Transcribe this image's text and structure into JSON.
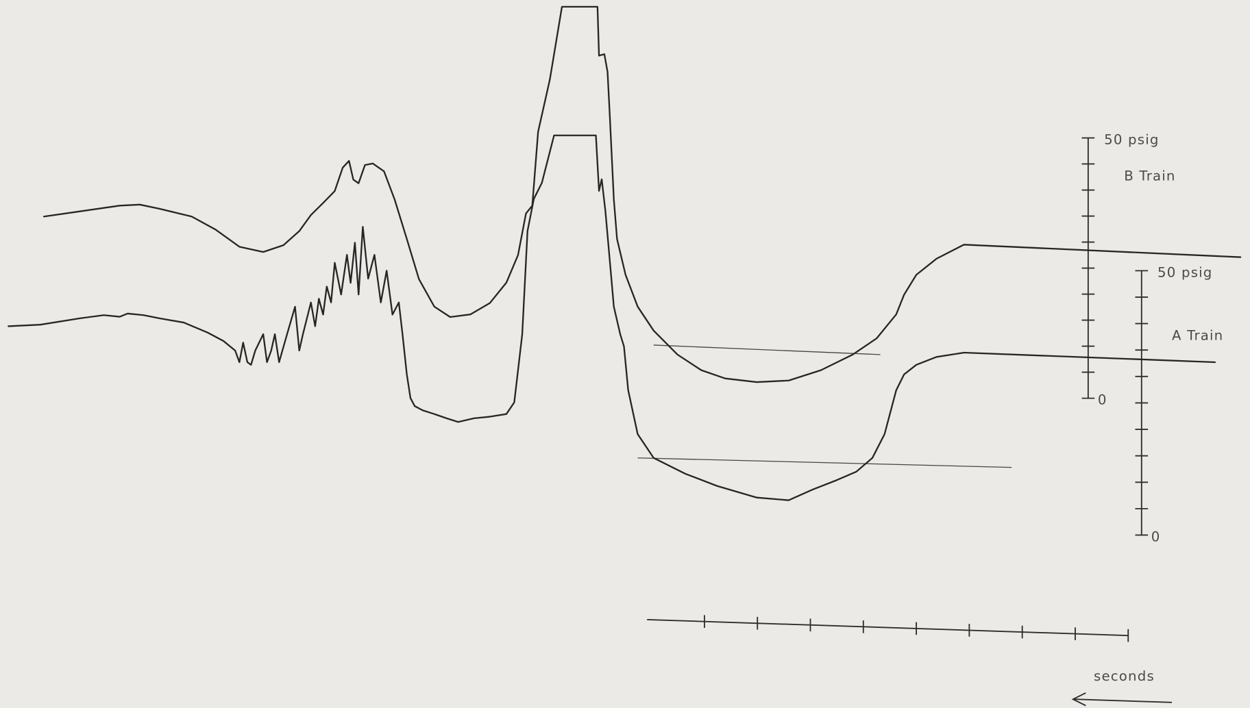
{
  "chart_data": {
    "type": "line",
    "xlabel": "seconds",
    "ylabel": "B Train",
    "y2label": "A Train",
    "xlim": [
      21.3,
      -2.3
    ],
    "ylim": [
      -59.5,
      76.5
    ],
    "y2lim": [
      -32.7,
      101.2
    ],
    "xminorticks": [
      0,
      1,
      2,
      3,
      4,
      5,
      6,
      7,
      8
    ],
    "yticks": [
      0,
      {
        "value": 50,
        "label": "50 psig"
      }
    ],
    "yminorticks": [
      5,
      10,
      15,
      20,
      25,
      30,
      35,
      40,
      45
    ],
    "y2ticks": [
      0,
      {
        "value": 50,
        "label": "50 psig"
      }
    ],
    "y2minorticks": [
      5,
      10,
      15,
      20,
      25,
      30,
      35,
      40,
      45
    ],
    "series": [
      {
        "color": "#262626",
        "axis": "y",
        "x": [
          20.47,
          19.79,
          19.04,
          18.66,
          18.29,
          17.68,
          17.23,
          16.78,
          16.33,
          15.95,
          15.65,
          15.43,
          15.2,
          14.98,
          14.83,
          14.71,
          14.63,
          14.53,
          14.41,
          14.26,
          14.05,
          13.85,
          13.62,
          13.39,
          13.1,
          12.8,
          12.42,
          12.05,
          11.74,
          11.52,
          11.37,
          11.25,
          11.14,
          10.92,
          10.77,
          10.69,
          10.02,
          9.99,
          9.89,
          9.83,
          9.79,
          9.71,
          9.65,
          9.49,
          9.26,
          8.96,
          8.51,
          8.06,
          7.61,
          7.01,
          6.41,
          5.8,
          5.2,
          4.75,
          4.38,
          4.23,
          4.0,
          3.62,
          3.1,
          -2.12
        ],
        "values": [
          34.9,
          35.9,
          37.0,
          37.2,
          36.4,
          34.9,
          32.4,
          29.1,
          28.1,
          29.4,
          32.1,
          35.2,
          37.5,
          39.8,
          44.3,
          45.6,
          42.0,
          41.3,
          44.8,
          45.1,
          43.6,
          38.2,
          30.6,
          22.9,
          17.6,
          15.6,
          16.1,
          18.3,
          22.2,
          27.5,
          35.5,
          37.0,
          51.2,
          61.2,
          70.3,
          75.2,
          75.2,
          65.8,
          66.1,
          62.7,
          55.0,
          38.2,
          30.6,
          23.7,
          17.6,
          13.0,
          8.4,
          5.4,
          3.8,
          3.1,
          3.4,
          5.4,
          8.4,
          11.5,
          16.1,
          19.9,
          23.7,
          26.8,
          29.5,
          27.1
        ]
      },
      {
        "color": "#262626",
        "axis": "y2",
        "x": [
          21.14,
          20.54,
          19.79,
          19.34,
          19.04,
          18.89,
          18.59,
          18.29,
          17.83,
          17.38,
          17.08,
          16.86,
          16.78,
          16.71,
          16.63,
          16.56,
          16.48,
          16.33,
          16.26,
          16.18,
          16.11,
          16.03,
          15.88,
          15.73,
          15.65,
          15.58,
          15.43,
          15.35,
          15.28,
          15.2,
          15.13,
          15.05,
          14.98,
          14.86,
          14.75,
          14.68,
          14.6,
          14.53,
          14.45,
          14.35,
          14.23,
          14.11,
          14.0,
          13.89,
          13.77,
          13.7,
          13.62,
          13.55,
          13.47,
          13.32,
          13.1,
          12.87,
          12.65,
          12.35,
          12.05,
          11.74,
          11.59,
          11.44,
          11.34,
          11.22,
          11.07,
          10.84,
          10.05,
          9.99,
          9.94,
          9.87,
          9.79,
          9.71,
          9.59,
          9.52,
          9.44,
          9.26,
          8.96,
          8.36,
          7.76,
          7.01,
          6.41,
          5.96,
          5.5,
          5.13,
          4.83,
          4.6,
          4.38,
          4.23,
          4.0,
          3.62,
          3.1,
          -1.64
        ],
        "values": [
          39.5,
          39.8,
          41.0,
          41.6,
          41.3,
          41.9,
          41.6,
          41.0,
          40.2,
          38.3,
          36.7,
          34.9,
          32.7,
          36.4,
          32.7,
          32.2,
          34.9,
          38.0,
          32.7,
          34.9,
          38.0,
          32.7,
          38.0,
          43.2,
          34.9,
          38.0,
          44.0,
          39.5,
          44.7,
          41.7,
          47.0,
          44.0,
          51.5,
          45.5,
          53.0,
          47.7,
          55.3,
          45.5,
          58.3,
          48.5,
          53.0,
          44.0,
          50.0,
          41.7,
          44.0,
          38.0,
          30.4,
          25.9,
          24.4,
          23.6,
          22.9,
          22.1,
          21.4,
          22.1,
          22.4,
          22.9,
          25.1,
          38.0,
          57.5,
          63.6,
          66.6,
          75.6,
          75.6,
          65.1,
          67.3,
          61.3,
          52.3,
          43.2,
          38.0,
          35.7,
          27.4,
          19.1,
          14.6,
          11.6,
          9.3,
          7.1,
          6.6,
          8.6,
          10.4,
          12.0,
          14.6,
          19.1,
          27.4,
          30.4,
          32.2,
          33.7,
          34.5,
          32.7
        ]
      }
    ],
    "reference_lines": [
      {
        "axis": "y",
        "value": 9.3,
        "x": [
          8.96,
          4.68
        ]
      },
      {
        "axis": "y2",
        "value": 13.7,
        "x": [
          9.26,
          2.2
        ]
      }
    ]
  }
}
